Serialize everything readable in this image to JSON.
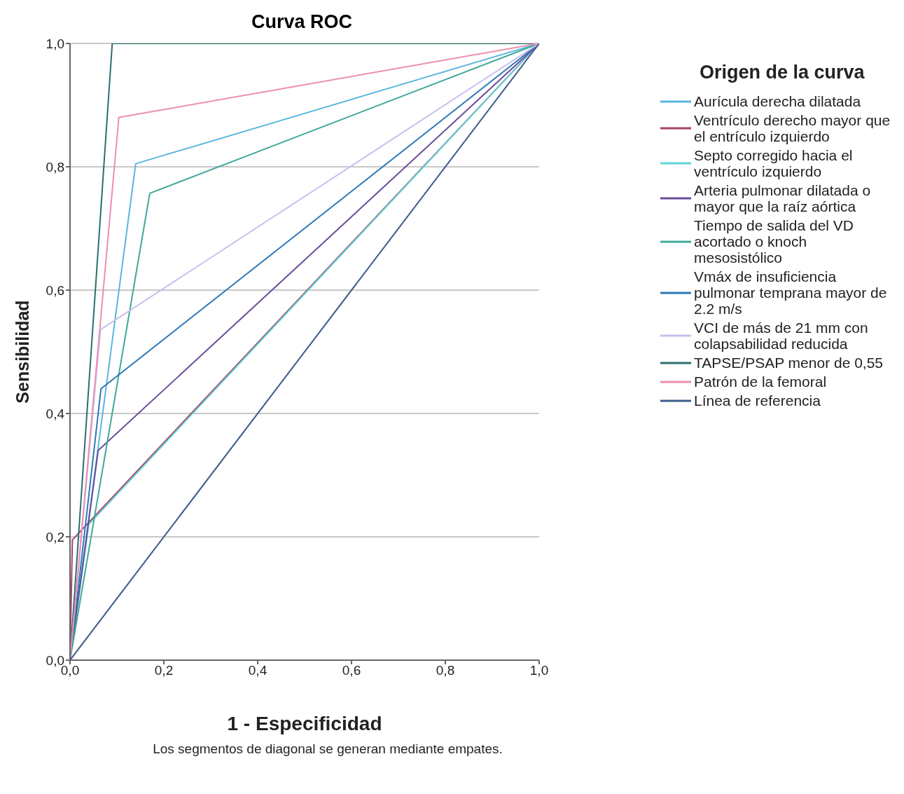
{
  "chart_data": {
    "type": "line",
    "title": "Curva ROC",
    "xlabel": "1 - Especificidad",
    "ylabel": "Sensibilidad",
    "legend_title": "Origen de la curva",
    "annotations": [
      "Los segmentos de diagonal se generan mediante empates."
    ],
    "xlim": [
      0,
      1
    ],
    "ylim": [
      0,
      1
    ],
    "xticks": [
      {
        "value": 0,
        "label": "0,0"
      },
      {
        "value": 0.2,
        "label": "0,2"
      },
      {
        "value": 0.4,
        "label": "0,4"
      },
      {
        "value": 0.6,
        "label": "0,6"
      },
      {
        "value": 0.8,
        "label": "0,8"
      },
      {
        "value": 1,
        "label": "1,0"
      }
    ],
    "yticks": [
      {
        "value": 0,
        "label": "0,0"
      },
      {
        "value": 0.2,
        "label": "0,2"
      },
      {
        "value": 0.4,
        "label": "0,4"
      },
      {
        "value": 0.6,
        "label": "0,6"
      },
      {
        "value": 0.8,
        "label": "0,8"
      },
      {
        "value": 1,
        "label": "1,0"
      }
    ],
    "grid": "y",
    "legend": "right",
    "series": [
      {
        "name": "Aurícula derecha dilatada",
        "color": "#5bb5e0",
        "x": [
          0,
          0.14,
          1
        ],
        "values": [
          0,
          0.805,
          1
        ]
      },
      {
        "name": "Ventrículo derecho mayor que el entrículo izquierdo",
        "color": "#a8446a",
        "x": [
          0,
          0.005,
          1
        ],
        "values": [
          0,
          0.195,
          1
        ]
      },
      {
        "name": "Septo corregido hacia el ventrículo izquierdo",
        "color": "#5fd6d6",
        "x": [
          0,
          0.04,
          1
        ],
        "values": [
          0,
          0.22,
          1
        ]
      },
      {
        "name": "Arteria pulmonar dilatada o mayor que la raíz aórtica",
        "color": "#6a4c9c",
        "x": [
          0,
          0.06,
          1
        ],
        "values": [
          0,
          0.34,
          1
        ]
      },
      {
        "name": "Tiempo de salida del VD acortado o knoch mesosistólico",
        "color": "#3fa89a",
        "x": [
          0,
          0.17,
          1
        ],
        "values": [
          0,
          0.757,
          1
        ]
      },
      {
        "name": "Vmáx de insuficiencia pulmonar temprana mayor de 2.2 m/s",
        "color": "#2e78b8",
        "x": [
          0,
          0.066,
          1
        ],
        "values": [
          0,
          0.44,
          1
        ]
      },
      {
        "name": "VCI de más de 21 mm con colapsabilidad reducida",
        "color": "#c8c0ee",
        "x": [
          0,
          0.065,
          1
        ],
        "values": [
          0,
          0.536,
          1
        ]
      },
      {
        "name": "TAPSE/PSAP menor de 0,55",
        "color": "#2c6e6e",
        "x": [
          0,
          0.09,
          1
        ],
        "values": [
          0,
          1,
          1
        ]
      },
      {
        "name": "Patrón de la femoral",
        "color": "#ec8fb0",
        "x": [
          0,
          0.104,
          1
        ],
        "values": [
          0,
          0.88,
          1
        ]
      },
      {
        "name": "Línea de referencia",
        "color": "#3a5c88",
        "x": [
          0,
          1
        ],
        "values": [
          0,
          1
        ]
      }
    ]
  }
}
